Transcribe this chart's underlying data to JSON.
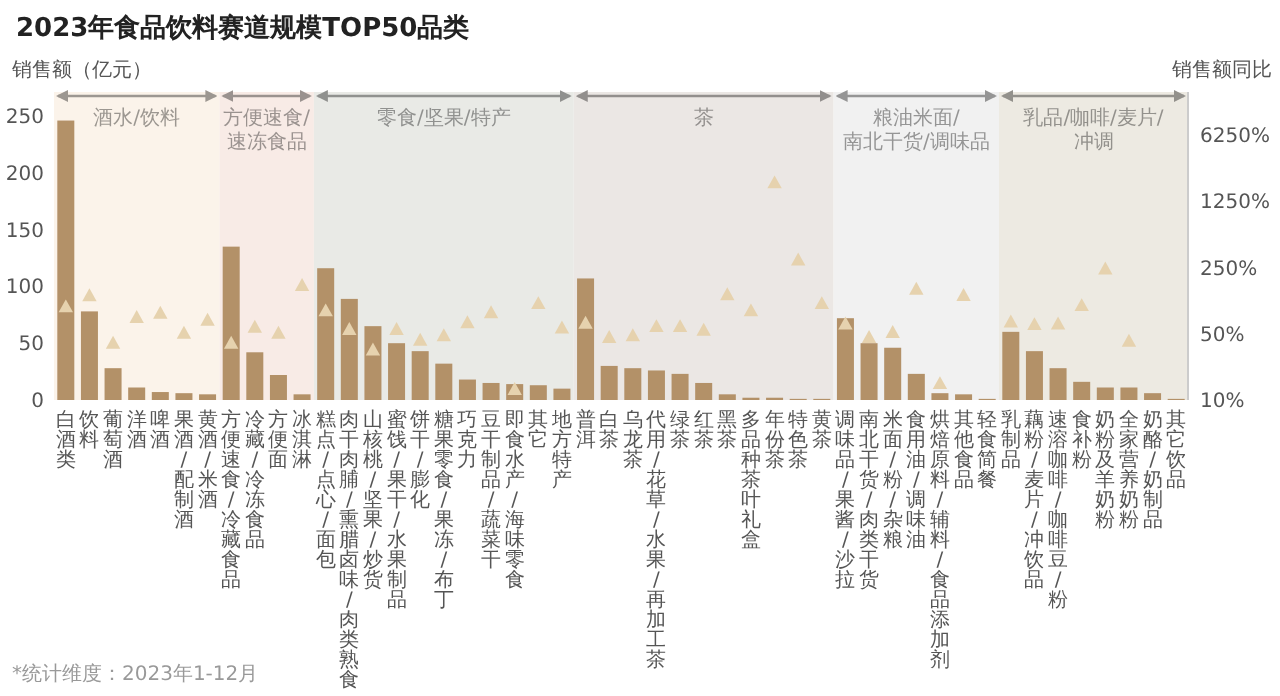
{
  "chart_data": {
    "type": "bar",
    "title": "2023年食品饮料赛道规模TOP50品类",
    "ylabel": "销售额（亿元）",
    "y2label": "销售额同比",
    "categories": [
      "白酒类",
      "饮料",
      "葡萄酒",
      "洋酒",
      "啤酒",
      "果酒/配制酒",
      "黄酒/米酒",
      "方便速食/冷藏食品",
      "冷藏/冷冻食品",
      "方便面",
      "冰淇淋",
      "糕点/点心/面包",
      "肉干肉脯/熏腊卤味/肉类熟食",
      "山核桃/坚果/炒货",
      "蜜饯/果干/水果制品",
      "饼干/膨化",
      "糖果零食/果冻/布丁",
      "巧克力",
      "豆干制品/蔬菜干",
      "即食水产/海味零食",
      "其它",
      "地方特产",
      "普洱",
      "白茶",
      "乌龙茶",
      "代用/花草/水果/再加工茶",
      "绿茶",
      "红茶",
      "黑茶",
      "多品种茶叶礼盒",
      "年份茶",
      "特色茶",
      "黄茶",
      "调味品/果酱/沙拉",
      "南北干货/肉类干货",
      "米面/粉/杂粮",
      "食用油/调味油",
      "烘焙原料/辅料/食品添加剂",
      "其他食品",
      "轻食简餐",
      "乳制品",
      "藕粉/麦片/冲饮品",
      "速溶咖啡/咖啡豆/粉",
      "食补粉",
      "奶粉及羊奶粉",
      "全家营养奶粉",
      "奶酪/奶制品",
      "其它饮品"
    ],
    "series": [
      {
        "color": "#b39168",
        "values": [
          246,
          78,
          28,
          11,
          7,
          6,
          5,
          135,
          42,
          22,
          5,
          116,
          89,
          65,
          50,
          43,
          32,
          18,
          15,
          14,
          13,
          10,
          107,
          30,
          28,
          26,
          23,
          15,
          5,
          2,
          2,
          1,
          1,
          72,
          50,
          46,
          23,
          6,
          5,
          1,
          60,
          43,
          28,
          16,
          11,
          11,
          6,
          1
        ]
      },
      {
        "type": "scatter",
        "axis": "y2",
        "marker": "triangle",
        "color": "#e6d2ae",
        "values": [
          97,
          127,
          40,
          75,
          83,
          51,
          70,
          40,
          59,
          51,
          163,
          88,
          56,
          34,
          56,
          43,
          48,
          66,
          84,
          13,
          105,
          58,
          65,
          46,
          48,
          60,
          60,
          55,
          130,
          88,
          1980,
          303,
          105,
          64,
          46,
          52,
          149,
          15,
          128,
          null,
          67,
          63,
          64,
          100,
          244,
          42,
          null,
          null
        ]
      }
    ],
    "ylim": [
      0,
      250
    ],
    "yticks": [
      0,
      50,
      100,
      150,
      200,
      250
    ],
    "log": "y2",
    "y2lim": [
      10,
      10000
    ],
    "y2ticks": [
      {
        "value": 10,
        "label": "10%"
      },
      {
        "value": 50,
        "label": "50%"
      },
      {
        "value": 250,
        "label": "250%"
      },
      {
        "value": 1250,
        "label": "1250%"
      },
      {
        "value": 6250,
        "label": "6250%"
      }
    ],
    "bands": [
      {
        "axis": "x",
        "from": "白酒类",
        "to": "黄酒/米酒",
        "label": "酒水/饮料",
        "color": "#fbf3ea"
      },
      {
        "axis": "x",
        "from": "方便速食/冷藏食品",
        "to": "冰淇淋",
        "label": "方便速食/速冻食品",
        "color": "#f8ebe6"
      },
      {
        "axis": "x",
        "from": "糕点/点心/面包",
        "to": "地方特产",
        "label": "零食/坚果/特产",
        "color": "#e9eae6"
      },
      {
        "axis": "x",
        "from": "普洱",
        "to": "黄茶",
        "label": "茶",
        "color": "#ebe7e4"
      },
      {
        "axis": "x",
        "from": "调味品/果酱/沙拉",
        "to": "轻食简餐",
        "label": "粮油米面/南北干货/调味品",
        "color": "#f1f1f1"
      },
      {
        "axis": "x",
        "from": "乳制品",
        "to": "其它饮品",
        "label": "乳品/咖啡/麦片/冲调",
        "color": "#edeae2"
      }
    ],
    "annotations": [
      "*统计维度：2023年1-12月"
    ]
  }
}
